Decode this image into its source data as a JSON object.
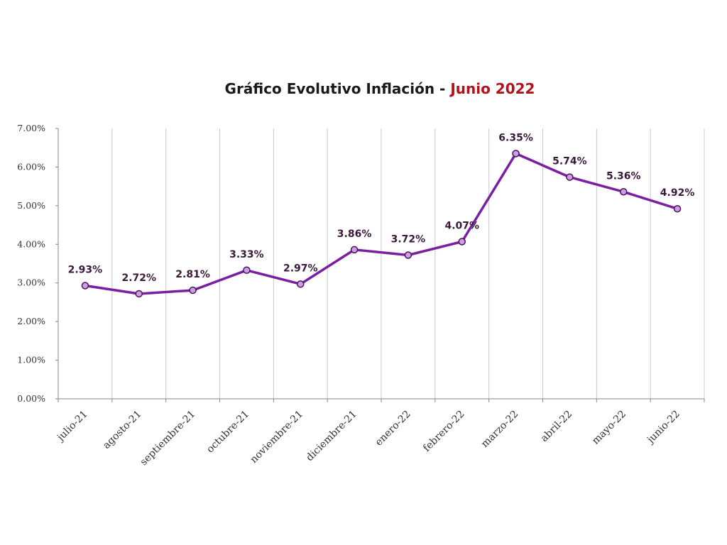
{
  "chart_data": {
    "type": "line",
    "title": "Gráfico Evolutivo Inflación - ",
    "title_accent": "Junio 2022",
    "title_accent_color": "#b3121b",
    "series_color": "#7b1fa2",
    "grid": true,
    "ylim": [
      0,
      0.07
    ],
    "y_ticks": [
      {
        "value": 0.0,
        "label": "0.00%"
      },
      {
        "value": 0.01,
        "label": "1.00%"
      },
      {
        "value": 0.02,
        "label": "2.00%"
      },
      {
        "value": 0.03,
        "label": "3.00%"
      },
      {
        "value": 0.04,
        "label": "4.00%"
      },
      {
        "value": 0.05,
        "label": "5.00%"
      },
      {
        "value": 0.06,
        "label": "6.00%"
      },
      {
        "value": 0.07,
        "label": "7.00%"
      }
    ],
    "categories": [
      "julio-21",
      "agosto-21",
      "septiembre-21",
      "octubre-21",
      "noviembre-21",
      "diciembre-21",
      "enero-22",
      "febrero-22",
      "marzo-22",
      "abril-22",
      "mayo-22",
      "junio-22"
    ],
    "values": [
      0.0293,
      0.0272,
      0.0281,
      0.0333,
      0.0297,
      0.0386,
      0.0372,
      0.0407,
      0.0635,
      0.0574,
      0.0536,
      0.0492
    ],
    "data_labels": [
      "2.93%",
      "2.72%",
      "2.81%",
      "3.33%",
      "2.97%",
      "3.86%",
      "3.72%",
      "4.07%",
      "6.35%",
      "5.74%",
      "5.36%",
      "4.92%"
    ]
  }
}
